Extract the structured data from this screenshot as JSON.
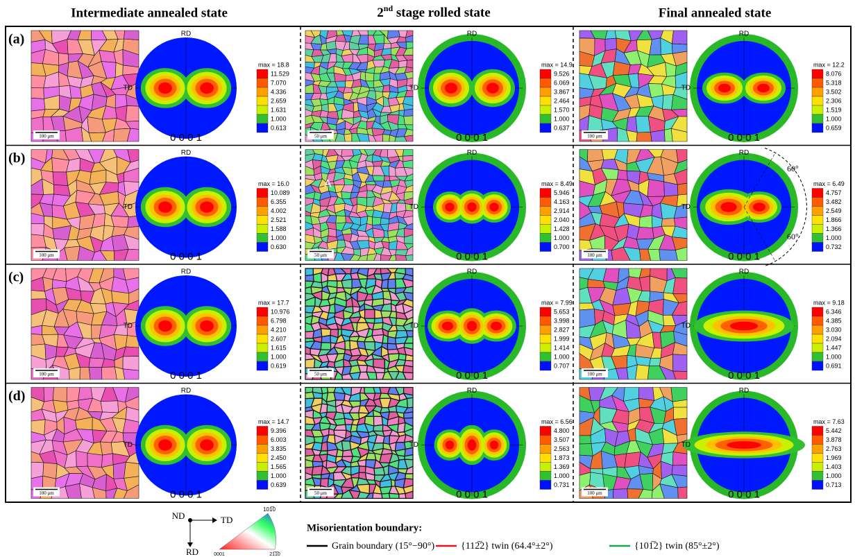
{
  "headers": [
    {
      "text": "Intermediate annealed state"
    },
    {
      "prefix": "2",
      "sup": "nd",
      "text": " stage rolled state"
    },
    {
      "text": "Final annealed state"
    }
  ],
  "rows": [
    {
      "label": "(a)",
      "cells": [
        {
          "scale": "100 μm",
          "rd": "RD",
          "td": "TD",
          "plane": "0 0 0 1",
          "legend": [
            "max = 18.8",
            "11.529",
            "7.070",
            "4.336",
            "2.659",
            "1.631",
            "1.000",
            "0.613"
          ]
        },
        {
          "scale": "50 μm",
          "rd": "RD",
          "td": "TD",
          "plane": "0 0 0 1",
          "legend": [
            "max = 14.9",
            "9.526",
            "6.069",
            "3.867",
            "2.464",
            "1.570",
            "1.000",
            "0.637"
          ]
        },
        {
          "scale": "100 μm",
          "rd": "RD",
          "td": "TD",
          "plane": "0 0 0 1",
          "legend": [
            "max = 12.2",
            "8.076",
            "5.318",
            "3.502",
            "2.306",
            "1.519",
            "1.000",
            "0.659"
          ]
        }
      ]
    },
    {
      "label": "(b)",
      "cells": [
        {
          "scale": "100 μm",
          "rd": "RD",
          "td": "TD",
          "plane": "0 0 0 1",
          "legend": [
            "max = 16.0",
            "10.089",
            "6.355",
            "4.002",
            "2.521",
            "1.588",
            "1.000",
            "0.630"
          ]
        },
        {
          "scale": "50 μm",
          "rd": "RD",
          "td": "TD",
          "plane": "0 0 0 1",
          "legend": [
            "max = 8.49",
            "5.946",
            "4.163",
            "2.914",
            "2.040",
            "1.428",
            "1.000",
            "0.700"
          ]
        },
        {
          "scale": "100 μm",
          "rd": "RD",
          "td": "TD",
          "plane": "0 0 0 1",
          "legend": [
            "max = 6.49",
            "4.757",
            "3.482",
            "2.549",
            "1.866",
            "1.366",
            "1.000",
            "0.732"
          ]
        }
      ]
    },
    {
      "label": "(c)",
      "cells": [
        {
          "scale": "100 μm",
          "rd": "RD",
          "td": "TD",
          "plane": "0 0 0 1",
          "legend": [
            "max = 17.7",
            "10.976",
            "6.798",
            "4.210",
            "2.607",
            "1.615",
            "1.000",
            "0.619"
          ]
        },
        {
          "scale": "50 μm",
          "rd": "RD",
          "td": "TD",
          "plane": "0 0 0 1",
          "legend": [
            "max = 7.99",
            "5.653",
            "3.998",
            "2.827",
            "1.999",
            "1.414",
            "1.000",
            "0.707"
          ]
        },
        {
          "scale": "100 μm",
          "rd": "RD",
          "td": "TD",
          "plane": "0 0 0 1",
          "legend": [
            "max = 9.18",
            "6.346",
            "4.385",
            "3.030",
            "2.094",
            "1.447",
            "1.000",
            "0.691"
          ]
        }
      ]
    },
    {
      "label": "(d)",
      "cells": [
        {
          "scale": "100 μm",
          "rd": "RD",
          "td": "TD",
          "plane": "0 0 0 1",
          "legend": [
            "max = 14.7",
            "9.396",
            "6.003",
            "3.835",
            "2.450",
            "1.565",
            "1.000",
            "0.639"
          ]
        },
        {
          "scale": "50 μm",
          "rd": "RD",
          "td": "TD",
          "plane": "0 0 0 1",
          "legend": [
            "max = 6.56",
            "4.800",
            "3.507",
            "2.563",
            "1.873",
            "1.369",
            "1.000",
            "0.731"
          ]
        },
        {
          "scale": "100 μm",
          "rd": "RD",
          "td": "TD",
          "plane": "0 0 0 1",
          "legend": [
            "max = 7.63",
            "5.442",
            "3.878",
            "2.763",
            "1.969",
            "1.403",
            "1.000",
            "0.713"
          ]
        }
      ]
    }
  ],
  "annotations": {
    "grain_a": "A",
    "angle_top": "60°",
    "angle_bottom": "60°"
  },
  "footer": {
    "axes": {
      "nd": "ND",
      "td": "TD",
      "rd": "RD"
    },
    "triangle": {
      "top": "101̅0",
      "left": "0001",
      "right": "21̅1̅0"
    },
    "boundary_title": "Misorientation boundary:",
    "boundaries": [
      {
        "label": "Grain boundary (15°−90°)",
        "color": "#000000"
      },
      {
        "label": "{112̅2} twin (64.4°±2°)",
        "color": "#e8141c"
      },
      {
        "label": "{101̅2} twin (85°±2°)",
        "color": "#1aa64a"
      }
    ]
  }
}
